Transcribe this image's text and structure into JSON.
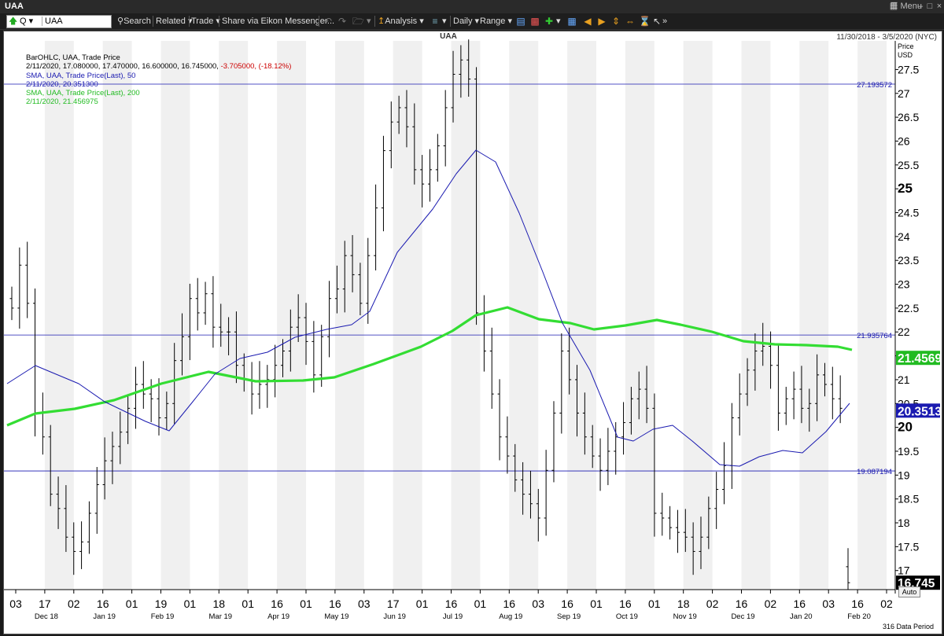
{
  "window": {
    "title": "UAA",
    "menu_label": "Menu",
    "min_icon": "minimize-icon",
    "max_icon": "maximize-icon",
    "close_icon": "close-icon"
  },
  "toolbar": {
    "symbol": "UAA",
    "q_label": "Q",
    "search_label": "Search",
    "related_label": "Related",
    "trade_label": "Trade",
    "share_label": "Share via Eikon Messenger...",
    "analysis_label": "Analysis",
    "daily_label": "Daily",
    "range_label": "Range"
  },
  "header": {
    "chart_title": "UAA",
    "date_range": "11/30/2018 - 3/5/2020 (NYC)",
    "price_label_1": "Price",
    "price_label_2": "USD"
  },
  "legend": {
    "line1": "BarOHLC, UAA, Trade Price",
    "line2_values": "2/11/2020, 17.080000, 17.470000, 16.600000, 16.745000, ",
    "line2_change": "-3.705000, (-18.12%)",
    "line3": "SMA, UAA, Trade Price(Last),  50",
    "line4": "2/11/2020, 20.351300",
    "line5": "SMA, UAA, Trade Price(Last),  200",
    "line6": "2/11/2020, 21.456975"
  },
  "footer": {
    "auto_label": "Auto",
    "period_label": "316 Data Period"
  },
  "colors": {
    "bars": "#000000",
    "sma50": "#1a1ab0",
    "sma200": "#33dd33",
    "hlines": "#1a1ab0",
    "stripe": "#f0f0f0"
  },
  "chart_data": {
    "type": "ohlc",
    "ylim": [
      16.6,
      28.1
    ],
    "yticks": [
      17,
      17.5,
      18,
      18.5,
      19,
      19.5,
      20,
      20.5,
      21,
      21.5,
      22,
      22.5,
      23,
      23.5,
      24,
      24.5,
      25,
      25.5,
      26,
      26.5,
      27,
      27.5
    ],
    "bold_ticks": [
      20,
      25
    ],
    "x_ticks": [
      "03",
      "17",
      "02",
      "16",
      "01",
      "19",
      "01",
      "18",
      "01",
      "16",
      "01",
      "16",
      "03",
      "17",
      "01",
      "16",
      "01",
      "16",
      "03",
      "16",
      "01",
      "16",
      "01",
      "18",
      "02",
      "16",
      "02",
      "16",
      "03",
      "16",
      "02"
    ],
    "month_labels": [
      "Dec 18",
      "Jan 19",
      "Feb 19",
      "Mar 19",
      "Apr 19",
      "May 19",
      "Jun 19",
      "Jul 19",
      "Aug 19",
      "Sep 19",
      "Oct 19",
      "Nov 19",
      "Dec 19",
      "Jan 20",
      "Feb 20"
    ],
    "hlines": [
      {
        "value": 27.193572,
        "label": "27.193572"
      },
      {
        "value": 21.935764,
        "label": "21.935764"
      },
      {
        "value": 19.087194,
        "label": "19.087194"
      }
    ],
    "last_labels": [
      {
        "value": 21.456975,
        "label": "21.4569",
        "color": "#22bb22"
      },
      {
        "value": 20.3513,
        "label": "20.3513",
        "color": "#1a1ab0"
      },
      {
        "value": 16.745,
        "label": "16.745",
        "color": "#000000"
      }
    ],
    "closes": [
      22.5,
      23.4,
      22.6,
      20.3,
      19.8,
      18.6,
      18.3,
      17.7,
      17.4,
      17.6,
      18.2,
      18.8,
      19.3,
      19.6,
      19.9,
      20.4,
      20.9,
      20.7,
      20.6,
      20.2,
      20.5,
      21.4,
      21.9,
      22.7,
      22.4,
      22.8,
      22.1,
      22.0,
      22.0,
      21.3,
      21.0,
      20.7,
      20.9,
      21.0,
      21.3,
      21.6,
      22.1,
      22.3,
      21.8,
      21.1,
      21.9,
      22.7,
      22.9,
      23.6,
      23.2,
      22.6,
      23.6,
      24.6,
      25.8,
      26.4,
      26.7,
      26.3,
      25.4,
      25.1,
      25.4,
      25.9,
      26.7,
      27.4,
      27.7,
      27.3,
      22.4,
      21.6,
      20.7,
      19.8,
      19.4,
      18.9,
      18.6,
      18.4,
      18.1,
      19.1,
      20.3,
      21.6,
      21.0,
      20.3,
      19.8,
      19.4,
      19.1,
      19.5,
      19.8,
      20.1,
      20.6,
      20.8,
      20.4,
      18.2,
      18.1,
      17.9,
      17.8,
      17.7,
      17.4,
      17.7,
      18.3,
      18.7,
      19.2,
      20.2,
      20.7,
      21.2,
      21.6,
      21.7,
      21.3,
      20.3,
      20.6,
      20.8,
      20.4,
      20.5,
      21.1,
      20.9,
      20.6,
      20.4,
      16.745
    ],
    "sma50": [
      [
        4,
        487
      ],
      [
        40,
        464
      ],
      [
        95,
        487
      ],
      [
        128,
        510
      ],
      [
        180,
        535
      ],
      [
        210,
        547
      ],
      [
        240,
        510
      ],
      [
        268,
        475
      ],
      [
        300,
        455
      ],
      [
        335,
        447
      ],
      [
        370,
        428
      ],
      [
        410,
        418
      ],
      [
        442,
        412
      ],
      [
        465,
        395
      ],
      [
        500,
        320
      ],
      [
        545,
        265
      ],
      [
        575,
        220
      ],
      [
        600,
        190
      ],
      [
        625,
        205
      ],
      [
        655,
        270
      ],
      [
        685,
        345
      ],
      [
        710,
        410
      ],
      [
        745,
        470
      ],
      [
        780,
        555
      ],
      [
        800,
        560
      ],
      [
        825,
        545
      ],
      [
        850,
        540
      ],
      [
        875,
        560
      ],
      [
        910,
        590
      ],
      [
        935,
        592
      ],
      [
        960,
        580
      ],
      [
        990,
        572
      ],
      [
        1015,
        575
      ],
      [
        1045,
        548
      ],
      [
        1075,
        512
      ]
    ],
    "sma200": [
      [
        4,
        540
      ],
      [
        40,
        525
      ],
      [
        90,
        519
      ],
      [
        140,
        508
      ],
      [
        200,
        487
      ],
      [
        260,
        472
      ],
      [
        320,
        484
      ],
      [
        380,
        483
      ],
      [
        420,
        479
      ],
      [
        470,
        462
      ],
      [
        530,
        440
      ],
      [
        570,
        420
      ],
      [
        600,
        400
      ],
      [
        640,
        390
      ],
      [
        680,
        405
      ],
      [
        720,
        410
      ],
      [
        750,
        418
      ],
      [
        790,
        413
      ],
      [
        830,
        406
      ],
      [
        860,
        412
      ],
      [
        900,
        421
      ],
      [
        940,
        433
      ],
      [
        980,
        437
      ],
      [
        1020,
        438
      ],
      [
        1060,
        440
      ],
      [
        1078,
        444
      ]
    ]
  }
}
